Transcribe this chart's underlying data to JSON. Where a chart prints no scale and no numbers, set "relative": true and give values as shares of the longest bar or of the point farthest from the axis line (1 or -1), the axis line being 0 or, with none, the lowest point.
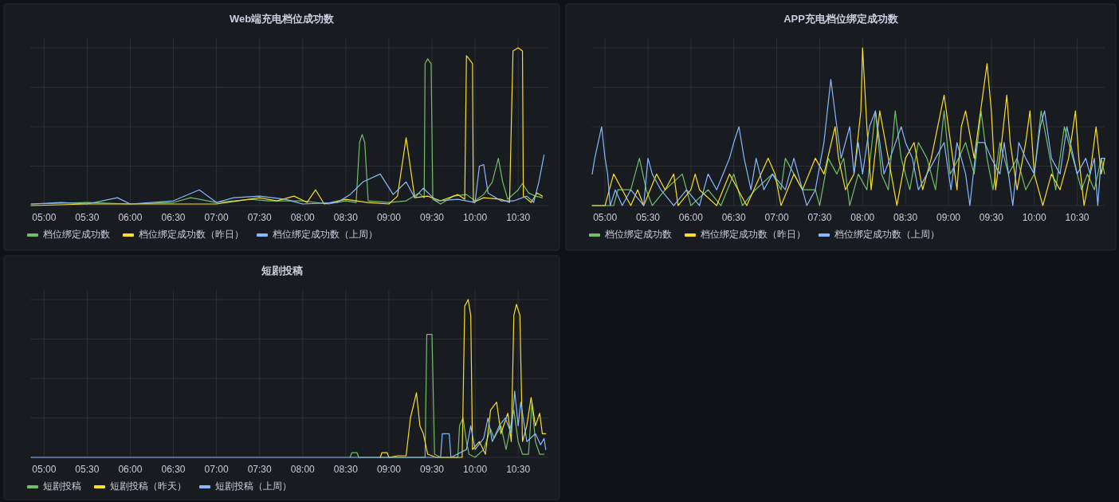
{
  "chart_data": [
    {
      "type": "line",
      "title": "Web端充电档位成功数",
      "relative": true,
      "grid": true,
      "legend": "bottom",
      "xlim": [
        4.84,
        10.85
      ],
      "xticks": [
        {
          "value": 5,
          "label": "05:00"
        },
        {
          "value": 5.5,
          "label": "05:30"
        },
        {
          "value": 6,
          "label": "06:00"
        },
        {
          "value": 6.5,
          "label": "06:30"
        },
        {
          "value": 7,
          "label": "07:00"
        },
        {
          "value": 7.5,
          "label": "07:30"
        },
        {
          "value": 8,
          "label": "08:00"
        },
        {
          "value": 8.5,
          "label": "08:30"
        },
        {
          "value": 9,
          "label": "09:00"
        },
        {
          "value": 9.5,
          "label": "09:30"
        },
        {
          "value": 10,
          "label": "10:00"
        },
        {
          "value": 10.5,
          "label": "10:30"
        }
      ],
      "series": [
        {
          "name": "档位绑定成功数",
          "color": "#73bf69",
          "x": [
            4.85,
            5.5,
            6.0,
            6.5,
            6.7,
            7.0,
            7.4,
            7.6,
            8.0,
            8.3,
            8.5,
            8.62,
            8.66,
            8.69,
            8.72,
            8.76,
            9.0,
            9.2,
            9.35,
            9.41,
            9.42,
            9.45,
            9.49,
            9.51,
            9.6,
            9.75,
            9.9,
            10.0,
            10.1,
            10.2,
            10.27,
            10.32,
            10.38,
            10.5,
            10.55,
            10.62,
            10.7,
            10.78
          ],
          "values": [
            0.01,
            0.02,
            0.01,
            0.02,
            0.05,
            0.02,
            0.04,
            0.03,
            0.03,
            0.01,
            0.03,
            0.02,
            0.4,
            0.45,
            0.4,
            0.03,
            0.02,
            0.03,
            0.08,
            0.05,
            0.9,
            0.93,
            0.9,
            0.04,
            0.01,
            0.06,
            0.07,
            0.03,
            0.07,
            0.15,
            0.3,
            0.15,
            0.04,
            0.1,
            0.14,
            0.08,
            0.06,
            0.05
          ]
        },
        {
          "name": "档位绑定成功数（昨日）",
          "color": "#fade2a",
          "x": [
            4.85,
            5.5,
            6.0,
            6.5,
            7.0,
            7.5,
            7.7,
            7.9,
            8.05,
            8.15,
            8.25,
            8.5,
            8.75,
            9.0,
            9.1,
            9.2,
            9.3,
            9.45,
            9.6,
            9.8,
            9.88,
            9.9,
            9.93,
            9.97,
            9.98,
            10.1,
            10.3,
            10.4,
            10.44,
            10.5,
            10.55,
            10.56,
            10.65,
            10.72,
            10.78
          ],
          "values": [
            0,
            0.01,
            0.01,
            0.01,
            0.01,
            0.05,
            0.03,
            0.06,
            0.02,
            0.1,
            0.01,
            0.04,
            0.02,
            0.01,
            0.06,
            0.43,
            0.05,
            0.06,
            0.03,
            0.07,
            0.04,
            0.95,
            0.93,
            0.9,
            0.02,
            0.05,
            0.04,
            0.02,
            0.98,
            1,
            0.98,
            0.06,
            0.02,
            0.08,
            0.06
          ]
        },
        {
          "name": "档位绑定成功数（上周）",
          "color": "#8ab8ff",
          "x": [
            4.85,
            5.2,
            5.5,
            5.85,
            6.0,
            6.5,
            6.8,
            7.0,
            7.2,
            7.5,
            7.8,
            8.0,
            8.4,
            8.55,
            8.7,
            8.9,
            9.05,
            9.2,
            9.3,
            9.4,
            9.55,
            9.8,
            10.0,
            10.05,
            10.1,
            10.15,
            10.3,
            10.45,
            10.6,
            10.68,
            10.74,
            10.8
          ],
          "values": [
            0.01,
            0.02,
            0.01,
            0.05,
            0.01,
            0.03,
            0.1,
            0.02,
            0.05,
            0.06,
            0.04,
            0.01,
            0.02,
            0.07,
            0.15,
            0.2,
            0.07,
            0.15,
            0.05,
            0.11,
            0.03,
            0.04,
            0.02,
            0.25,
            0.26,
            0.08,
            0.03,
            0.03,
            0.06,
            0.02,
            0.15,
            0.32
          ]
        }
      ]
    },
    {
      "type": "line",
      "title": "APP充电档位绑定成功数",
      "relative": true,
      "grid": true,
      "legend": "bottom",
      "xlim": [
        4.85,
        10.82
      ],
      "xticks": [
        {
          "value": 5,
          "label": "05:00"
        },
        {
          "value": 5.5,
          "label": "05:30"
        },
        {
          "value": 6,
          "label": "06:00"
        },
        {
          "value": 6.5,
          "label": "06:30"
        },
        {
          "value": 7,
          "label": "07:00"
        },
        {
          "value": 7.5,
          "label": "07:30"
        },
        {
          "value": 8,
          "label": "08:00"
        },
        {
          "value": 8.5,
          "label": "08:30"
        },
        {
          "value": 9,
          "label": "09:00"
        },
        {
          "value": 9.5,
          "label": "09:30"
        },
        {
          "value": 10,
          "label": "10:00"
        },
        {
          "value": 10.5,
          "label": "10:30"
        }
      ],
      "series": [
        {
          "name": "档位绑定成功数",
          "color": "#73bf69",
          "x": [
            4.85,
            5.1,
            5.15,
            5.3,
            5.4,
            5.48,
            5.55,
            5.7,
            5.9,
            6.0,
            6.2,
            6.35,
            6.5,
            6.6,
            6.75,
            6.95,
            7.05,
            7.1,
            7.2,
            7.3,
            7.45,
            7.5,
            7.6,
            7.7,
            7.78,
            7.85,
            7.95,
            8.05,
            8.15,
            8.22,
            8.3,
            8.38,
            8.45,
            8.55,
            8.65,
            8.75,
            8.85,
            8.95,
            9.02,
            9.12,
            9.2,
            9.3,
            9.38,
            9.45,
            9.52,
            9.6,
            9.7,
            9.8,
            9.9,
            10.0,
            10.08,
            10.15,
            10.25,
            10.35,
            10.45,
            10.55,
            10.62,
            10.7,
            10.78,
            10.82
          ],
          "values": [
            0,
            0,
            0.1,
            0.1,
            0.3,
            0.1,
            0,
            0.1,
            0.2,
            0,
            0.1,
            0,
            0.2,
            0,
            0.1,
            0.2,
            0.1,
            0.3,
            0.2,
            0.1,
            0.1,
            0,
            0.3,
            0.2,
            0.3,
            0,
            0.2,
            0.1,
            0.6,
            0.2,
            0.1,
            0.6,
            0.3,
            0.1,
            0.4,
            0.3,
            0.1,
            0.6,
            0.2,
            0.3,
            0.4,
            0.2,
            0.6,
            0.3,
            0.1,
            0.4,
            0.2,
            0.3,
            0.1,
            0.2,
            0.6,
            0.4,
            0.1,
            0.5,
            0.3,
            0.1,
            0.2,
            0.1,
            0.3,
            0.2
          ]
        },
        {
          "name": "档位绑定成功数（昨日）",
          "color": "#fade2a",
          "x": [
            4.85,
            5.0,
            5.05,
            5.1,
            5.2,
            5.3,
            5.38,
            5.45,
            5.6,
            5.7,
            5.8,
            5.85,
            6.0,
            6.05,
            6.1,
            6.3,
            6.45,
            6.55,
            6.65,
            6.9,
            6.98,
            7.05,
            7.2,
            7.3,
            7.45,
            7.55,
            7.68,
            7.72,
            7.8,
            7.9,
            7.98,
            8.0,
            8.05,
            8.1,
            8.2,
            8.3,
            8.4,
            8.5,
            8.6,
            8.7,
            8.8,
            8.95,
            9.0,
            9.1,
            9.15,
            9.2,
            9.3,
            9.4,
            9.45,
            9.5,
            9.55,
            9.62,
            9.68,
            9.72,
            9.8,
            9.9,
            9.95,
            10.0,
            10.1,
            10.2,
            10.3,
            10.4,
            10.48,
            10.52,
            10.58,
            10.65,
            10.72,
            10.78,
            10.82
          ],
          "values": [
            0,
            0,
            0.1,
            0.2,
            0.1,
            0,
            0.1,
            0,
            0.2,
            0.1,
            0.2,
            0,
            0.1,
            0.2,
            0.1,
            0,
            0.2,
            0.1,
            0,
            0.3,
            0.2,
            0,
            0.2,
            0.1,
            0.3,
            0.2,
            0.5,
            0.3,
            0.1,
            0.2,
            0.6,
            1,
            0.5,
            0.1,
            0.6,
            0.3,
            0,
            0.3,
            0.4,
            0.1,
            0.3,
            0.7,
            0.5,
            0.1,
            0.5,
            0.6,
            0.3,
            0.7,
            0.9,
            0.6,
            0.1,
            0.4,
            0.7,
            0.4,
            0.1,
            0.4,
            0.6,
            0.2,
            0,
            0.2,
            0.1,
            0.3,
            0.6,
            0.3,
            0,
            0.2,
            0.5,
            0.2,
            0.3
          ]
        },
        {
          "name": "档位绑定成功数（上周）",
          "color": "#8ab8ff",
          "x": [
            4.85,
            4.88,
            4.92,
            4.96,
            5.0,
            5.03,
            5.06,
            5.12,
            5.2,
            5.3,
            5.45,
            5.5,
            5.55,
            5.65,
            5.8,
            5.95,
            6.1,
            6.2,
            6.3,
            6.45,
            6.5,
            6.56,
            6.62,
            6.7,
            6.76,
            6.85,
            6.95,
            7.1,
            7.2,
            7.3,
            7.35,
            7.45,
            7.55,
            7.63,
            7.7,
            7.75,
            7.85,
            7.9,
            7.95,
            8.0,
            8.08,
            8.15,
            8.25,
            8.32,
            8.45,
            8.5,
            8.58,
            8.65,
            8.75,
            8.85,
            8.95,
            9.03,
            9.1,
            9.2,
            9.25,
            9.33,
            9.42,
            9.5,
            9.6,
            9.65,
            9.75,
            9.82,
            9.9,
            10.0,
            10.07,
            10.12,
            10.2,
            10.3,
            10.38,
            10.42,
            10.5,
            10.6,
            10.65,
            10.7,
            10.74,
            10.78,
            10.82
          ],
          "values": [
            0.2,
            0.3,
            0.4,
            0.5,
            0.3,
            0.2,
            0,
            0.1,
            0,
            0.1,
            0,
            0.3,
            0.2,
            0.1,
            0,
            0.1,
            0,
            0.2,
            0.1,
            0.3,
            0.4,
            0.5,
            0.3,
            0.1,
            0.3,
            0.1,
            0.2,
            0.1,
            0.3,
            0.1,
            0,
            0.1,
            0.4,
            0.8,
            0.5,
            0.3,
            0.5,
            0.2,
            0.4,
            0.2,
            0.5,
            0.6,
            0.2,
            0.3,
            0.5,
            0.4,
            0.3,
            0.1,
            0.2,
            0.3,
            0.4,
            0.1,
            0.4,
            0.2,
            0,
            0.4,
            0.4,
            0.3,
            0.2,
            0.4,
            0,
            0.4,
            0.3,
            0.2,
            0.5,
            0.6,
            0.3,
            0.2,
            0.5,
            0.4,
            0.2,
            0.3,
            0.2,
            0.3,
            0,
            0.3,
            0.3
          ]
        }
      ]
    },
    {
      "type": "line",
      "title": "短剧投稿",
      "relative": true,
      "grid": true,
      "legend": "bottom",
      "xlim": [
        4.84,
        10.85
      ],
      "xticks": [
        {
          "value": 5,
          "label": "05:00"
        },
        {
          "value": 5.5,
          "label": "05:30"
        },
        {
          "value": 6,
          "label": "06:00"
        },
        {
          "value": 6.5,
          "label": "06:30"
        },
        {
          "value": 7,
          "label": "07:00"
        },
        {
          "value": 7.5,
          "label": "07:30"
        },
        {
          "value": 8,
          "label": "08:00"
        },
        {
          "value": 8.5,
          "label": "08:30"
        },
        {
          "value": 9,
          "label": "09:00"
        },
        {
          "value": 9.5,
          "label": "09:30"
        },
        {
          "value": 10,
          "label": "10:00"
        },
        {
          "value": 10.5,
          "label": "10:30"
        }
      ],
      "series": [
        {
          "name": "短剧投稿",
          "color": "#73bf69",
          "x": [
            8.55,
            8.57,
            8.63,
            8.65,
            9.42,
            9.44,
            9.5,
            9.53,
            9.6,
            9.8,
            9.82,
            9.86,
            9.9,
            9.93,
            10.0,
            10.1,
            10.18,
            10.22,
            10.3,
            10.36,
            10.45,
            10.5,
            10.55,
            10.62,
            10.66,
            10.7,
            10.75,
            10.8
          ],
          "values": [
            0,
            0.03,
            0.03,
            0,
            0,
            0.78,
            0.78,
            0.02,
            0,
            0,
            0.2,
            0.25,
            0.1,
            0.02,
            0,
            0.05,
            0.18,
            0.12,
            0.2,
            0.05,
            0.3,
            0.1,
            0.02,
            0.02,
            0.35,
            0.1,
            0.02,
            0.02
          ]
        },
        {
          "name": "短剧投稿（昨天）",
          "color": "#fade2a",
          "x": [
            8.9,
            8.92,
            8.98,
            9.0,
            9.1,
            9.2,
            9.25,
            9.32,
            9.36,
            9.4,
            9.45,
            9.55,
            9.85,
            9.88,
            9.92,
            9.95,
            9.97,
            10.05,
            10.12,
            10.18,
            10.25,
            10.3,
            10.38,
            10.42,
            10.45,
            10.48,
            10.52,
            10.55,
            10.6,
            10.65,
            10.7,
            10.75,
            10.78,
            10.82
          ],
          "values": [
            0,
            0.03,
            0.03,
            0,
            0.01,
            0.01,
            0.25,
            0.41,
            0.2,
            0.15,
            0.02,
            0,
            0,
            0.96,
            1,
            0.9,
            0.05,
            0.1,
            0.02,
            0.3,
            0.35,
            0.15,
            0.28,
            0.1,
            0.9,
            0.97,
            0.9,
            0.1,
            0.2,
            0.38,
            0.2,
            0.28,
            0.15,
            0.15
          ]
        },
        {
          "name": "短剧投稿（上周）",
          "color": "#8ab8ff",
          "x": [
            4.85,
            9.6,
            9.62,
            9.7,
            9.72,
            9.9,
            9.95,
            10.0,
            10.1,
            10.15,
            10.2,
            10.28,
            10.35,
            10.42,
            10.46,
            10.5,
            10.53,
            10.6,
            10.7,
            10.76,
            10.8,
            10.82
          ],
          "values": [
            0,
            0,
            0.15,
            0.15,
            0,
            0.05,
            0.2,
            0.05,
            0.12,
            0.25,
            0.1,
            0.2,
            0.25,
            0.15,
            0.42,
            0.2,
            0.35,
            0.1,
            0.15,
            0.08,
            0.12,
            0.05
          ]
        }
      ]
    }
  ]
}
